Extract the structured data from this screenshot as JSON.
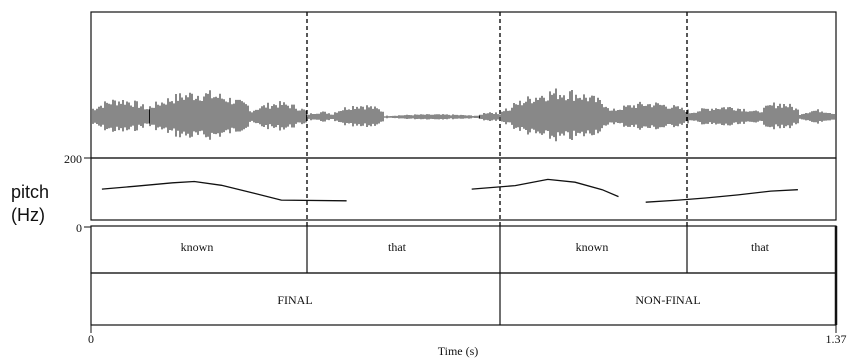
{
  "pitch_axis": {
    "label_line1": "pitch",
    "label_line2": "(Hz)",
    "tick_top": "200",
    "tick_bottom": "0"
  },
  "time_axis": {
    "label": "Time (s)",
    "tick_start": "0",
    "tick_end": "1.37",
    "range": [
      0,
      1.37
    ]
  },
  "words_tier": [
    "known",
    "that",
    "known",
    "that"
  ],
  "phrase_tier": [
    "FINAL",
    "NON-FINAL"
  ],
  "colors": {
    "ink": "#111111",
    "background": "#ffffff"
  },
  "chart_data": {
    "type": "line",
    "title": "",
    "xlabel": "Time (s)",
    "ylabel": "pitch (Hz)",
    "xlim": [
      0,
      1.37
    ],
    "ylim": [
      0,
      200
    ],
    "word_boundaries": [
      0,
      0.36,
      0.68,
      0.99,
      1.37
    ],
    "phrase_boundaries": [
      0,
      0.68,
      1.37
    ],
    "pitch_series": [
      {
        "x": [
          0.02,
          0.08,
          0.15,
          0.19,
          0.24,
          0.3,
          0.35,
          0.47
        ],
        "y": [
          110,
          118,
          128,
          132,
          121,
          98,
          78,
          76
        ]
      },
      {
        "x": [
          0.7,
          0.78,
          0.84,
          0.89,
          0.94,
          0.97
        ],
        "y": [
          110,
          120,
          138,
          130,
          108,
          88
        ]
      },
      {
        "x": [
          1.02,
          1.08,
          1.13,
          1.19,
          1.25,
          1.3
        ],
        "y": [
          72,
          78,
          84,
          93,
          104,
          108
        ]
      }
    ]
  }
}
